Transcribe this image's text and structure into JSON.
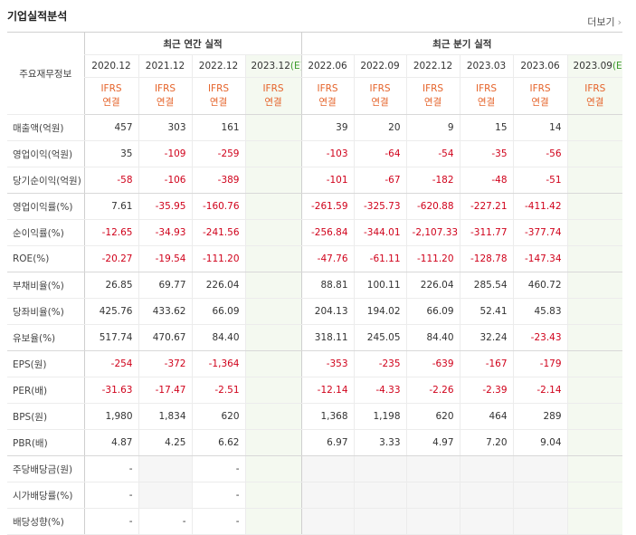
{
  "header": {
    "title": "기업실적분석",
    "more": "더보기"
  },
  "table": {
    "corner": "주요재무정보",
    "groups": [
      "최근 연간 실적",
      "최근 분기 실적"
    ],
    "columns": [
      {
        "period": "2020.12",
        "basis": "IFRS",
        "consolidation": "연결"
      },
      {
        "period": "2021.12",
        "basis": "IFRS",
        "consolidation": "연결"
      },
      {
        "period": "2022.12",
        "basis": "IFRS",
        "consolidation": "연결"
      },
      {
        "period": "2023.12",
        "estimate": "(E)",
        "basis": "IFRS",
        "consolidation": "연결"
      },
      {
        "period": "2022.06",
        "basis": "IFRS",
        "consolidation": "연결"
      },
      {
        "period": "2022.09",
        "basis": "IFRS",
        "consolidation": "연결"
      },
      {
        "period": "2022.12",
        "basis": "IFRS",
        "consolidation": "연결"
      },
      {
        "period": "2023.03",
        "basis": "IFRS",
        "consolidation": "연결"
      },
      {
        "period": "2023.06",
        "basis": "IFRS",
        "consolidation": "연결"
      },
      {
        "period": "2023.09",
        "estimate": "(E)",
        "basis": "IFRS",
        "consolidation": "연결"
      }
    ],
    "rows": [
      {
        "label": "매출액(억원)",
        "cells": [
          "457",
          "303",
          "161",
          null,
          "39",
          "20",
          "9",
          "15",
          "14",
          null
        ]
      },
      {
        "label": "영업이익(억원)",
        "cells": [
          "35",
          "-109",
          "-259",
          null,
          "-103",
          "-64",
          "-54",
          "-35",
          "-56",
          null
        ]
      },
      {
        "label": "당기순이익(억원)",
        "cells": [
          "-58",
          "-106",
          "-389",
          null,
          "-101",
          "-67",
          "-182",
          "-48",
          "-51",
          null
        ]
      },
      {
        "label": "영업이익률(%)",
        "cells": [
          "7.61",
          "-35.95",
          "-160.76",
          null,
          "-261.59",
          "-325.73",
          "-620.88",
          "-227.21",
          "-411.42",
          null
        ]
      },
      {
        "label": "순이익률(%)",
        "cells": [
          "-12.65",
          "-34.93",
          "-241.56",
          null,
          "-256.84",
          "-344.01",
          "-2,107.33",
          "-311.77",
          "-377.74",
          null
        ]
      },
      {
        "label": "ROE(%)",
        "cells": [
          "-20.27",
          "-19.54",
          "-111.20",
          null,
          "-47.76",
          "-61.11",
          "-111.20",
          "-128.78",
          "-147.34",
          null
        ]
      },
      {
        "label": "부채비율(%)",
        "cells": [
          "26.85",
          "69.77",
          "226.04",
          null,
          "88.81",
          "100.11",
          "226.04",
          "285.54",
          "460.72",
          null
        ]
      },
      {
        "label": "당좌비율(%)",
        "cells": [
          "425.76",
          "433.62",
          "66.09",
          null,
          "204.13",
          "194.02",
          "66.09",
          "52.41",
          "45.83",
          null
        ]
      },
      {
        "label": "유보율(%)",
        "cells": [
          "517.74",
          "470.67",
          "84.40",
          null,
          "318.11",
          "245.05",
          "84.40",
          "32.24",
          "-23.43",
          null
        ]
      },
      {
        "label": "EPS(원)",
        "cells": [
          "-254",
          "-372",
          "-1,364",
          null,
          "-353",
          "-235",
          "-639",
          "-167",
          "-179",
          null
        ]
      },
      {
        "label": "PER(배)",
        "cells": [
          "-31.63",
          "-17.47",
          "-2.51",
          null,
          "-12.14",
          "-4.33",
          "-2.26",
          "-2.39",
          "-2.14",
          null
        ]
      },
      {
        "label": "BPS(원)",
        "cells": [
          "1,980",
          "1,834",
          "620",
          null,
          "1,368",
          "1,198",
          "620",
          "464",
          "289",
          null
        ]
      },
      {
        "label": "PBR(배)",
        "cells": [
          "4.87",
          "4.25",
          "6.62",
          null,
          "6.97",
          "3.33",
          "4.97",
          "7.20",
          "9.04",
          null
        ]
      },
      {
        "label": "주당배당금(원)",
        "cells": [
          "-",
          null,
          "-",
          null,
          null,
          null,
          null,
          null,
          null,
          null
        ]
      },
      {
        "label": "시가배당률(%)",
        "cells": [
          "-",
          null,
          "-",
          null,
          null,
          null,
          null,
          null,
          null,
          null
        ]
      },
      {
        "label": "배당성향(%)",
        "cells": [
          "-",
          "-",
          "-",
          null,
          null,
          null,
          null,
          null,
          null,
          null
        ]
      }
    ]
  }
}
